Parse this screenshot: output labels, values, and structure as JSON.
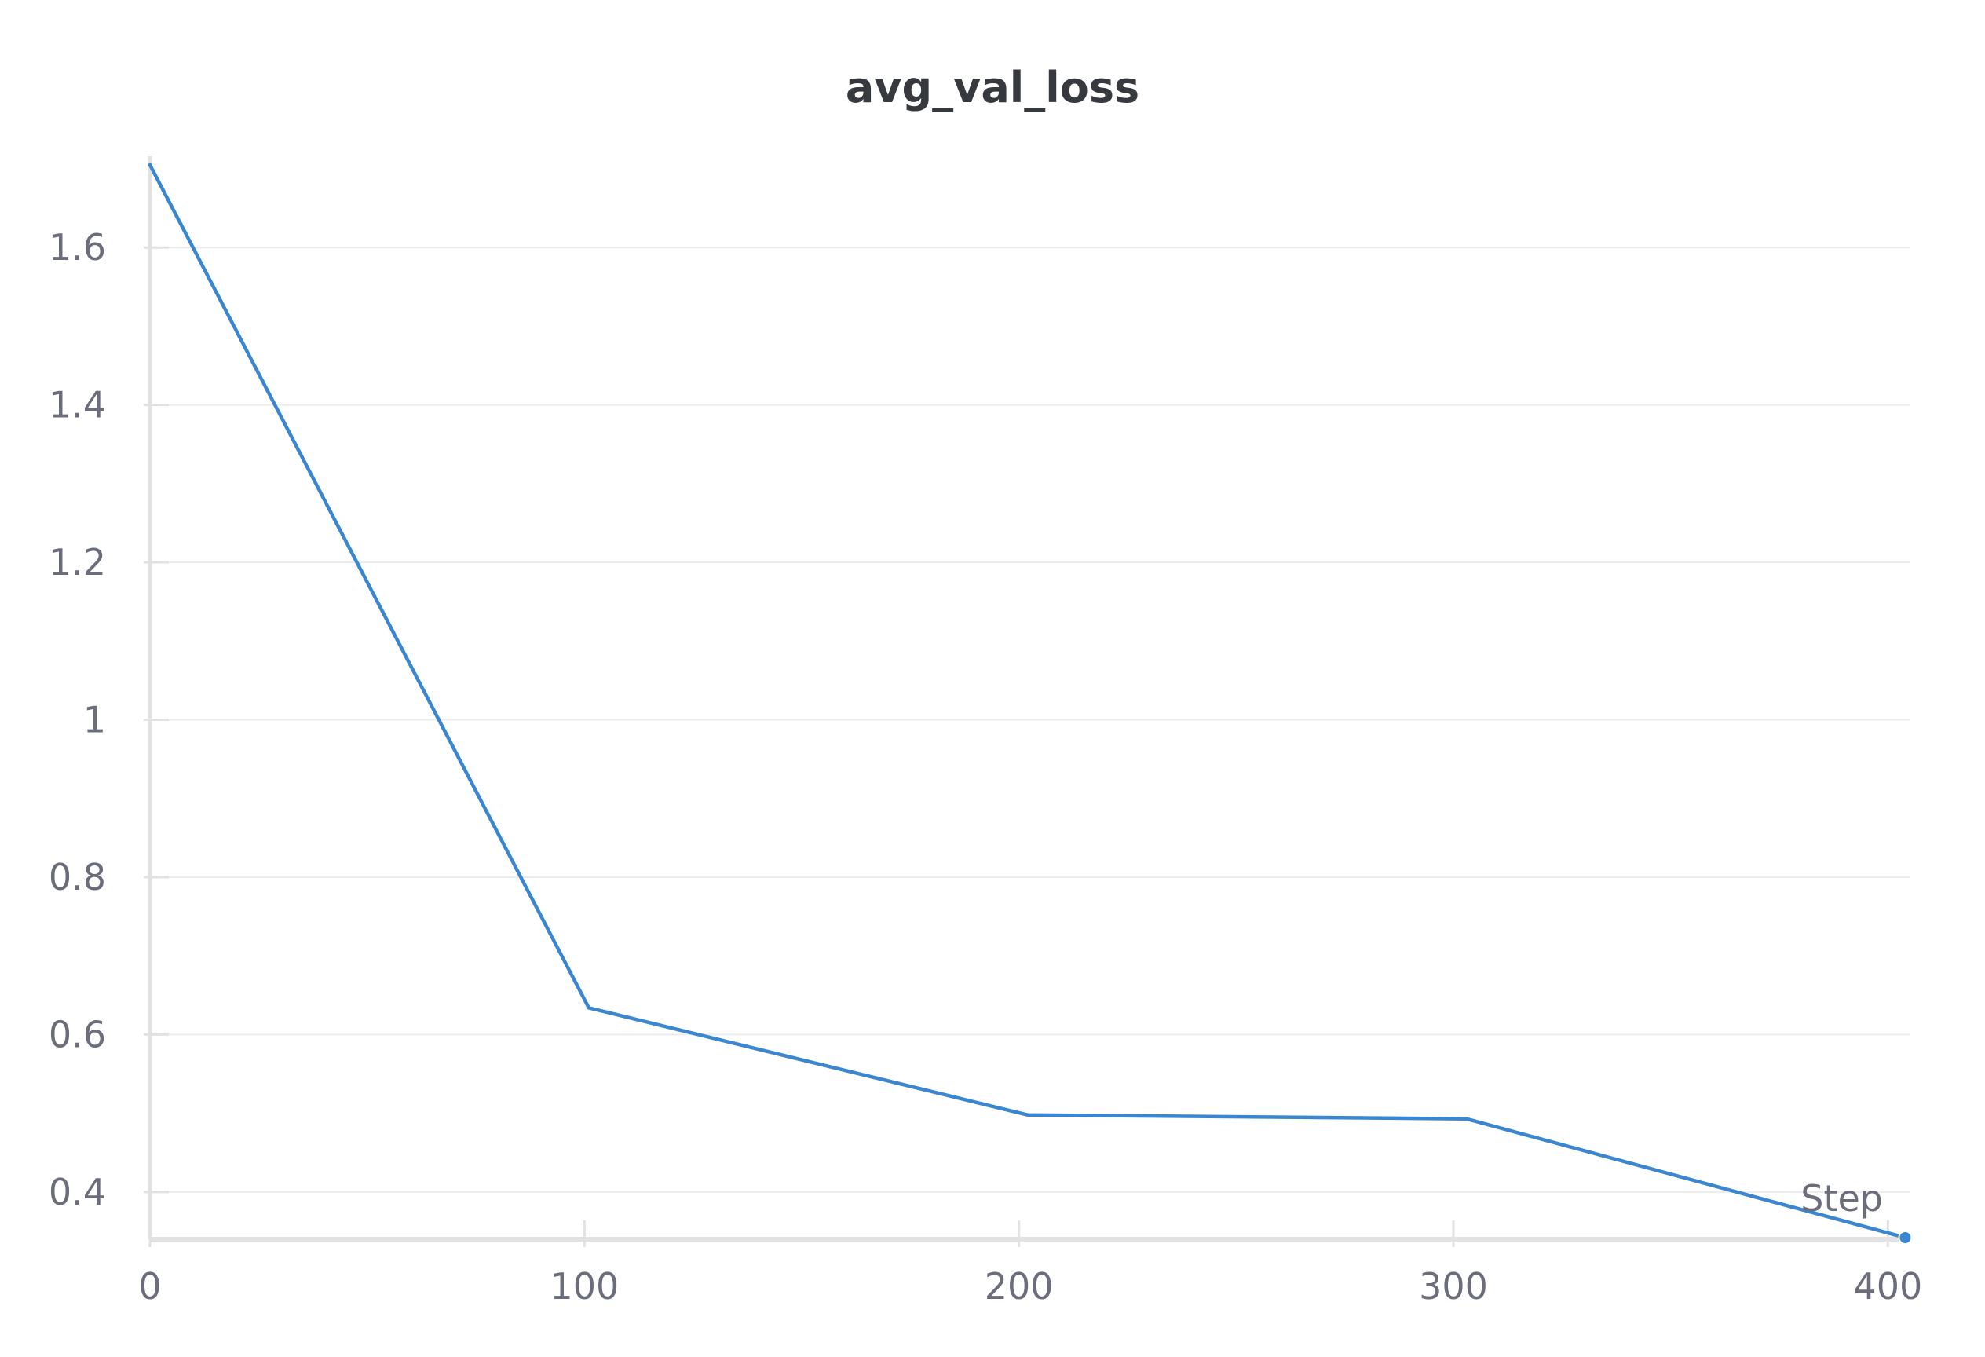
{
  "chart_data": {
    "type": "line",
    "title": "avg_val_loss",
    "xlabel": "Step",
    "ylabel": "",
    "xlim": [
      0,
      405
    ],
    "ylim": [
      0.34,
      1.71
    ],
    "x_ticks": [
      0,
      100,
      200,
      300,
      400
    ],
    "x_tick_labels": [
      "0",
      "100",
      "200",
      "300",
      "400"
    ],
    "y_ticks": [
      0.4,
      0.6,
      0.8,
      1.0,
      1.2,
      1.4,
      1.6
    ],
    "y_tick_labels": [
      "0.4",
      "0.6",
      "0.8",
      "1",
      "1.2",
      "1.4",
      "1.6"
    ],
    "grid": true,
    "legend": "none",
    "series": [
      {
        "color": "#3a86d0",
        "x": [
          0,
          101,
          202,
          303,
          404
        ],
        "y": [
          1.705,
          0.634,
          0.498,
          0.493,
          0.342
        ]
      }
    ]
  }
}
